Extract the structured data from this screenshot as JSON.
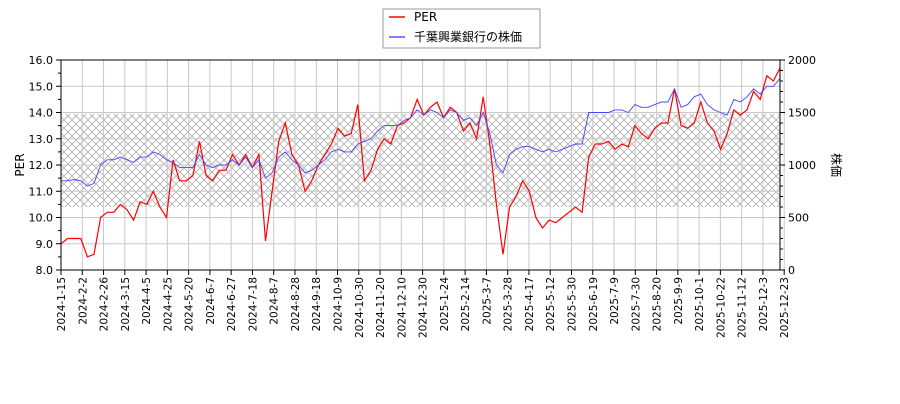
{
  "chart_data": {
    "type": "line",
    "title": "",
    "xlabel": "",
    "ylabel": "PER",
    "y2label": "株価",
    "ylim": [
      8.0,
      16.0
    ],
    "y2lim": [
      0,
      2000
    ],
    "yticks": [
      "8.0",
      "9.0",
      "10.0",
      "11.0",
      "12.0",
      "13.0",
      "14.0",
      "15.0",
      "16.0"
    ],
    "y2ticks": [
      "0",
      "500",
      "1000",
      "1500",
      "2000"
    ],
    "grid": true,
    "legend_position": "top-center",
    "x_tick_labels": [
      "2024-1-15",
      "2024-2-2",
      "2024-2-26",
      "2024-3-15",
      "2024-4-5",
      "2024-4-25",
      "2024-5-20",
      "2024-6-7",
      "2024-6-27",
      "2024-7-18",
      "2024-8-7",
      "2024-8-28",
      "2024-9-18",
      "2024-10-9",
      "2024-10-30",
      "2024-11-20",
      "2024-12-10",
      "2024-12-30",
      "2025-1-24",
      "2025-2-14",
      "2025-3-7",
      "2025-3-28",
      "2025-4-17",
      "2025-5-12",
      "2025-5-30",
      "2025-6-19",
      "2025-7-9",
      "2025-7-30",
      "2025-8-20",
      "2025-9-9",
      "2025-10-1",
      "2025-10-22",
      "2025-11-12",
      "2025-12-3",
      "2025-12-23"
    ],
    "shaded_band_per": [
      10.4,
      13.95
    ],
    "series": [
      {
        "name": "PER",
        "axis": "left",
        "color": "#ff0000",
        "values": [
          9.0,
          9.2,
          9.2,
          9.2,
          8.5,
          8.6,
          10.0,
          10.2,
          10.2,
          10.5,
          10.3,
          9.9,
          10.6,
          10.5,
          11.0,
          10.4,
          10.0,
          12.2,
          11.4,
          11.4,
          11.6,
          12.9,
          11.6,
          11.4,
          11.8,
          11.8,
          12.4,
          12.0,
          12.4,
          11.9,
          12.4,
          9.1,
          11.0,
          12.9,
          13.6,
          12.4,
          12.0,
          11.0,
          11.4,
          12.0,
          12.4,
          12.8,
          13.4,
          13.1,
          13.2,
          14.3,
          11.4,
          11.8,
          12.6,
          13.0,
          12.8,
          13.5,
          13.6,
          13.8,
          14.5,
          13.9,
          14.2,
          14.4,
          13.8,
          14.2,
          14.0,
          13.3,
          13.6,
          13.0,
          14.6,
          12.8,
          10.5,
          8.6,
          10.4,
          10.8,
          11.4,
          11.0,
          10.0,
          9.6,
          9.9,
          9.8,
          10.0,
          10.2,
          10.4,
          10.2,
          12.3,
          12.8,
          12.8,
          12.9,
          12.6,
          12.8,
          12.7,
          13.5,
          13.2,
          13.0,
          13.4,
          13.6,
          13.6,
          14.9,
          13.5,
          13.4,
          13.6,
          14.4,
          13.6,
          13.3,
          12.6,
          13.2,
          14.1,
          13.9,
          14.1,
          14.8,
          14.5,
          15.4,
          15.2,
          15.7
        ]
      },
      {
        "name": "千葉興業銀行の株価",
        "axis": "right",
        "color": "#0000ff",
        "values": [
          850,
          850,
          862,
          850,
          800,
          825,
          1000,
          1050,
          1050,
          1075,
          1050,
          1025,
          1075,
          1075,
          1125,
          1100,
          1050,
          1025,
          975,
          975,
          975,
          1100,
          1000,
          975,
          1000,
          1000,
          1050,
          1000,
          1075,
          975,
          1050,
          875,
          925,
          1075,
          1125,
          1050,
          1000,
          925,
          950,
          1000,
          1050,
          1125,
          1150,
          1125,
          1125,
          1200,
          1225,
          1250,
          1325,
          1375,
          1375,
          1375,
          1425,
          1450,
          1525,
          1475,
          1525,
          1500,
          1450,
          1525,
          1500,
          1425,
          1450,
          1375,
          1500,
          1300,
          1000,
          925,
          1100,
          1150,
          1175,
          1175,
          1150,
          1125,
          1150,
          1125,
          1150,
          1175,
          1200,
          1200,
          1500,
          1500,
          1500,
          1500,
          1525,
          1525,
          1500,
          1575,
          1550,
          1550,
          1575,
          1600,
          1600,
          1725,
          1550,
          1575,
          1650,
          1675,
          1575,
          1525,
          1500,
          1475,
          1625,
          1600,
          1650,
          1725,
          1675,
          1750,
          1750,
          1825
        ]
      }
    ]
  },
  "legend": {
    "items": [
      "PER",
      "千葉興業銀行の株価"
    ]
  }
}
